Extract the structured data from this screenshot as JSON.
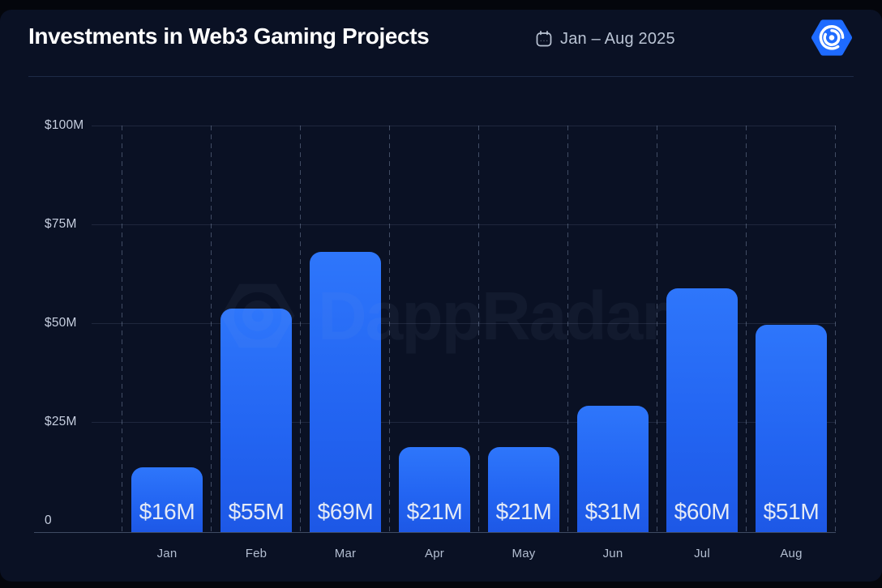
{
  "header": {
    "title": "Investments in Web3 Gaming Projects",
    "date_range": "Jan – Aug 2025"
  },
  "watermark": {
    "text": "DappRadar"
  },
  "colors": {
    "background": "#0a1124",
    "bar_gradient_top": "#2e76fb",
    "bar_gradient_bottom": "#1d58e6",
    "brand_blue": "#1e6bff",
    "text_primary": "#ffffff",
    "text_secondary": "#bac4d4"
  },
  "chart_data": {
    "type": "bar",
    "title": "Investments in Web3 Gaming Projects",
    "subtitle": "Jan – Aug 2025",
    "categories": [
      "Jan",
      "Feb",
      "Mar",
      "Apr",
      "May",
      "Jun",
      "Jul",
      "Aug"
    ],
    "values": [
      16,
      55,
      69,
      21,
      21,
      31,
      60,
      51
    ],
    "bar_labels": [
      "$16M",
      "$55M",
      "$69M",
      "$21M",
      "$21M",
      "$31M",
      "$60M",
      "$51M"
    ],
    "y_ticks": [
      "$100M",
      "$75M",
      "$50M",
      "$25M",
      "0"
    ],
    "ylim": [
      0,
      100
    ],
    "xlabel": "",
    "ylabel": "",
    "grid": true,
    "legend": false,
    "units": "USD millions"
  }
}
